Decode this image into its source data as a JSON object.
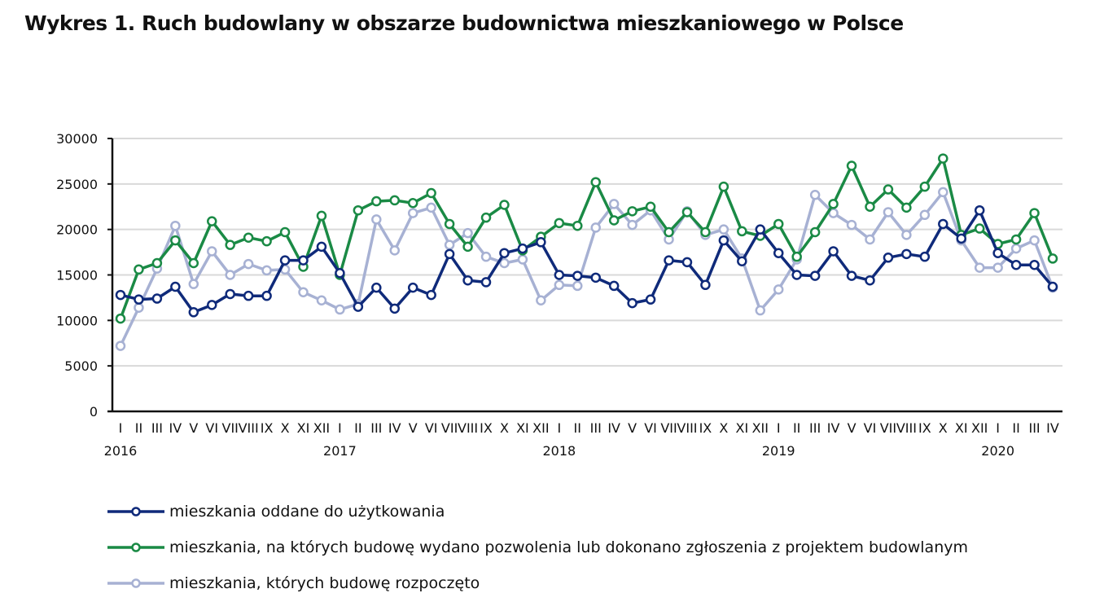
{
  "title": "Wykres 1. Ruch budowlany w obszarze budownictwa mieszkaniowego w Polsce",
  "chart_data": {
    "type": "line",
    "title": "Wykres 1. Ruch budowlany w obszarze budownictwa mieszkaniowego w Polsce",
    "xlabel": "",
    "ylabel": "",
    "ylim": [
      0,
      30000
    ],
    "yticks": [
      "0",
      "5000",
      "10000",
      "15000",
      "20000",
      "25000",
      "30000"
    ],
    "grid": true,
    "legend_position": "bottom",
    "categories": [
      "I",
      "II",
      "III",
      "IV",
      "V",
      "VI",
      "VII",
      "VIII",
      "IX",
      "X",
      "XI",
      "XII",
      "I",
      "II",
      "III",
      "IV",
      "V",
      "VI",
      "VII",
      "VIII",
      "IX",
      "X",
      "XI",
      "XII",
      "I",
      "II",
      "III",
      "IV",
      "V",
      "VI",
      "VII",
      "VIII",
      "IX",
      "X",
      "XI",
      "XII",
      "I",
      "II",
      "III",
      "IV",
      "V",
      "VI",
      "VII",
      "VIII",
      "IX",
      "X",
      "XI",
      "XII",
      "I",
      "II",
      "III",
      "IV"
    ],
    "x_tick_labels_rendered": [
      "I",
      "II",
      "III",
      "IV",
      "V",
      "VI",
      "VII",
      "VIII",
      "IX",
      "X",
      "XI",
      "XII"
    ],
    "years": [
      {
        "label": "2016",
        "start_index": 0
      },
      {
        "label": "2017",
        "start_index": 12
      },
      {
        "label": "2018",
        "start_index": 24
      },
      {
        "label": "2019",
        "start_index": 36
      },
      {
        "label": "2020",
        "start_index": 48
      }
    ],
    "series": [
      {
        "name": "mieszkania oddane do użytkowania",
        "color": "#0f2a7a",
        "values": [
          12800,
          12300,
          12400,
          13700,
          10900,
          11700,
          12900,
          12700,
          12700,
          16600,
          16600,
          18100,
          15200,
          11500,
          13600,
          11300,
          13600,
          12800,
          17300,
          14400,
          14200,
          17400,
          17900,
          18600,
          15000,
          14900,
          14700,
          13800,
          11900,
          12300,
          16600,
          16400,
          13900,
          18800,
          16500,
          20000,
          17400,
          15000,
          14900,
          17600,
          14900,
          14400,
          16900,
          17300,
          17000,
          20600,
          19000,
          22100,
          17400,
          16100,
          16100,
          13700
        ]
      },
      {
        "name": "mieszkania, na których budowę wydano pozwolenia lub dokonano zgłoszenia z projektem budowlanym",
        "color": "#1a8a45",
        "values": [
          10200,
          15600,
          16300,
          18800,
          16300,
          20900,
          18300,
          19100,
          18700,
          19700,
          15900,
          21500,
          15000,
          22100,
          23100,
          23200,
          22900,
          24000,
          20600,
          18100,
          21300,
          22700,
          17700,
          19200,
          20700,
          20400,
          25200,
          21000,
          22000,
          22500,
          19700,
          21900,
          19700,
          24700,
          19800,
          19300,
          20600,
          17000,
          19700,
          22800,
          27000,
          22500,
          24400,
          22400,
          24700,
          27800,
          19400,
          20100,
          18400,
          18900,
          21800,
          16800
        ]
      },
      {
        "name": "mieszkania, których budowę rozpoczęto",
        "color": "#a7b1d3",
        "values": [
          7200,
          11400,
          15700,
          20400,
          14000,
          17600,
          15000,
          16200,
          15500,
          15600,
          13100,
          12200,
          11200,
          11800,
          21100,
          17700,
          21800,
          22400,
          18300,
          19600,
          17000,
          16300,
          16700,
          12200,
          13900,
          13800,
          20200,
          22800,
          20500,
          22100,
          18900,
          22000,
          19400,
          20000,
          16800,
          11100,
          13400,
          16700,
          23800,
          21800,
          20500,
          18900,
          21900,
          19400,
          21600,
          24100,
          18800,
          15800,
          15800,
          17900,
          18800,
          13600
        ]
      }
    ]
  }
}
